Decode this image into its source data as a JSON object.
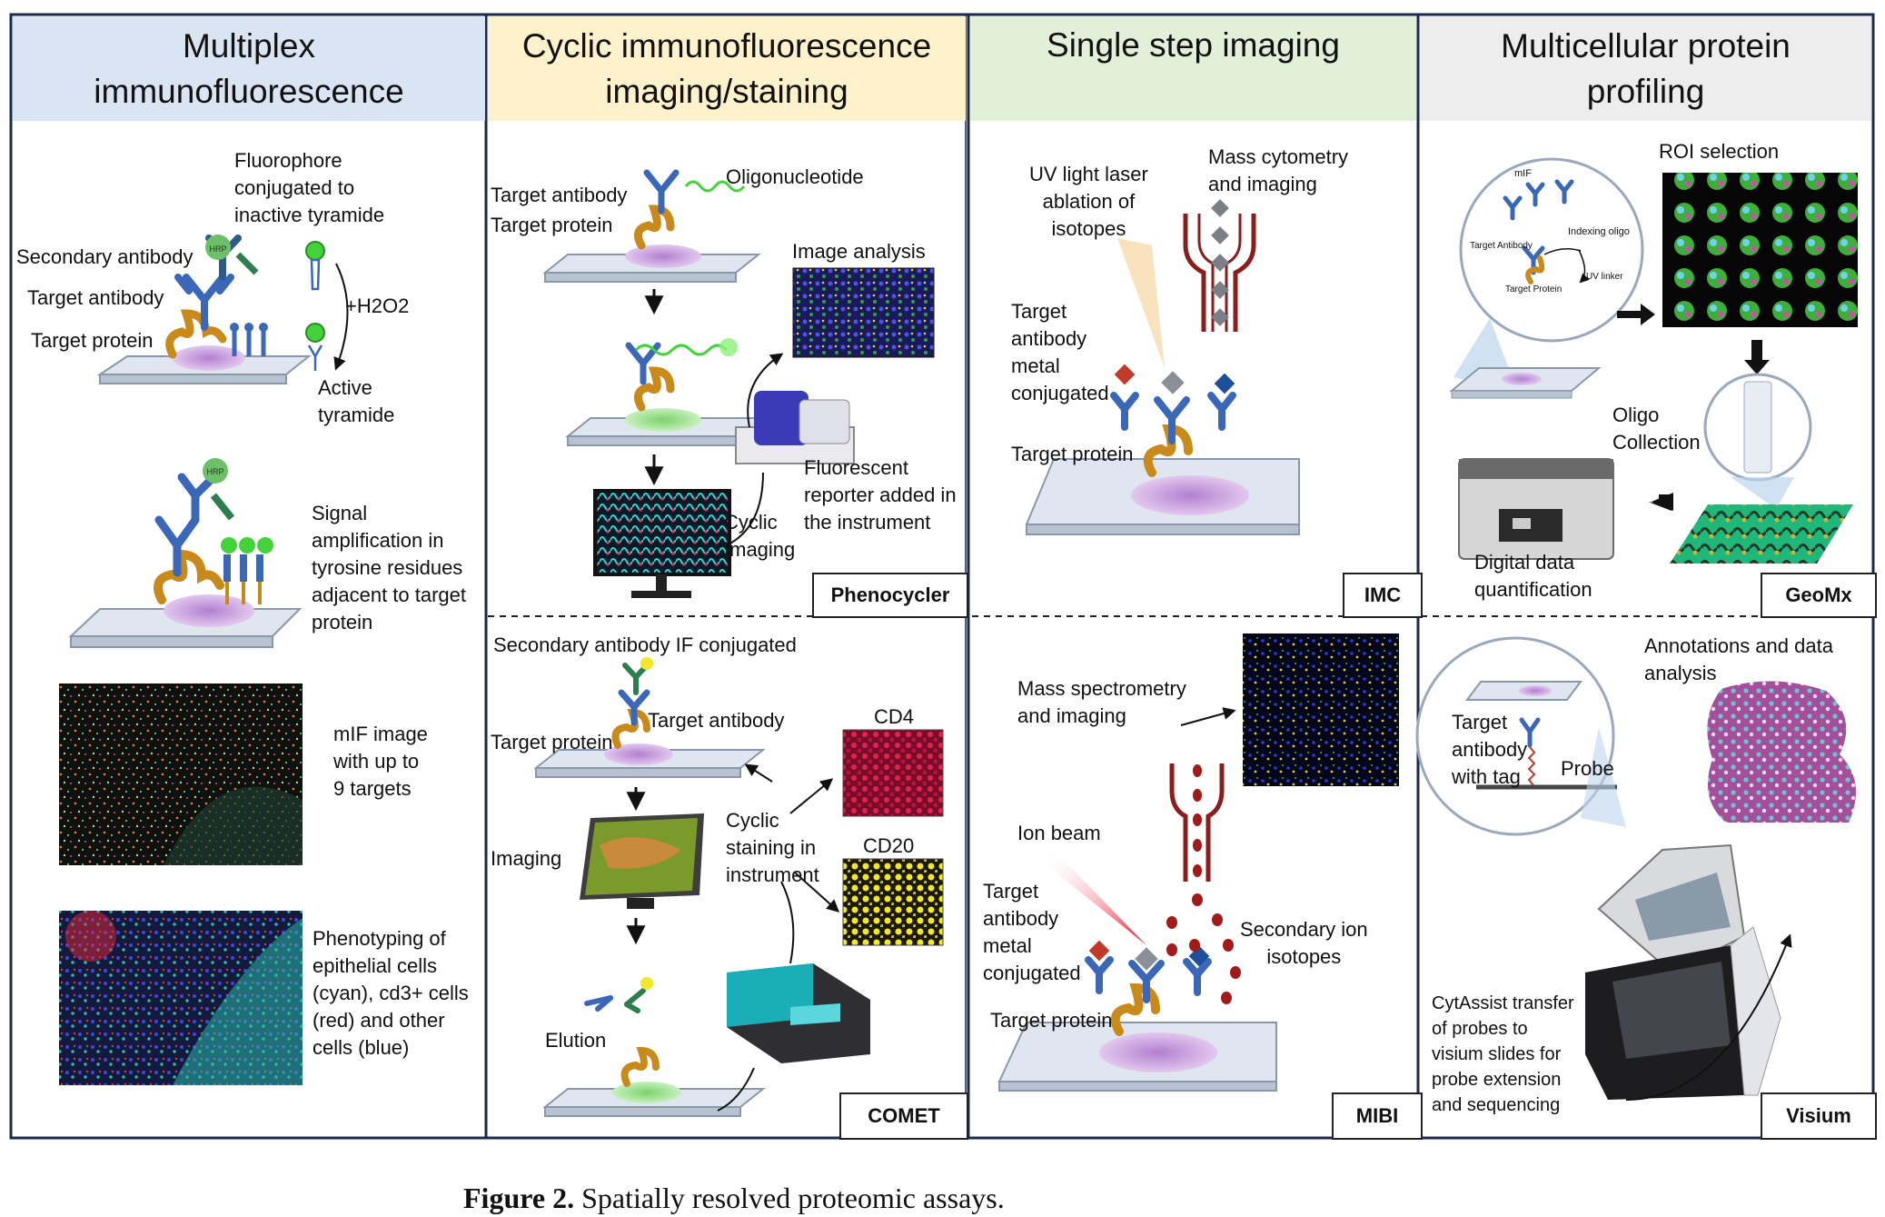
{
  "panels": [
    {
      "title": "Multiplex\nimmunofluorescence",
      "color": "#dae5f3"
    },
    {
      "title": "Cyclic immunofluorescence\nimaging/staining",
      "color": "#fdf2cc"
    },
    {
      "title": "Single step imaging",
      "color": "#e2efd9"
    },
    {
      "title": "Multicellular protein\nprofiling",
      "color": "#ededed"
    }
  ],
  "multiplex": {
    "fluorophore": "Fluorophore\nconjugated to\ninactive tyramide",
    "secondary_antibody": "Secondary antibody",
    "target_antibody": "Target antibody",
    "target_protein": "Target protein",
    "h2o2": "+H2O2",
    "active_tyramide": "Active\ntyramide",
    "hrp": "HRP",
    "signal": "Signal\namplification in\ntyrosine residues\nadjacent to target\nprotein",
    "mif_image": "mIF image\nwith up to\n9 targets",
    "phenotyping": "Phenotyping of\nepithelial cells\n(cyan), cd3+ cells\n(red) and other\ncells (blue)"
  },
  "phenocycler": {
    "target_antibody": "Target antibody",
    "target_protein": "Target protein",
    "oligonucleotide": "Oligonucleotide",
    "image_analysis": "Image analysis",
    "fluorescent_reporter": "Fluorescent\nreporter added in\nthe instrument",
    "cyclic_imaging": "Cyclic\nImaging",
    "tag": "Phenocycler"
  },
  "comet": {
    "secondary_if": "Secondary antibody IF conjugated",
    "target_antibody": "Target antibody",
    "target_protein": "Target protein",
    "cd4": "CD4",
    "cd20": "CD20",
    "cyclic_staining": "Cyclic\nstaining in\ninstrument",
    "imaging": "Imaging",
    "elution": "Elution",
    "tag": "COMET"
  },
  "imc": {
    "uv_laser": "UV light laser\nablation of\nisotopes",
    "mass_cytometry": "Mass cytometry\nand imaging",
    "target_antibody": "Target\nantibody\nmetal\nconjugated",
    "target_protein": "Target protein",
    "tag": "IMC"
  },
  "mibi": {
    "mass_spec": "Mass spectrometry\nand imaging",
    "ion_beam": "Ion beam",
    "target_antibody": "Target\nantibody\nmetal\nconjugated",
    "secondary_ion": "Secondary ion\nisotopes",
    "target_protein": "Target protein",
    "tag": "MIBI"
  },
  "geomx": {
    "roi": "ROI selection",
    "mif": "mIF",
    "indexing_oligo": "Indexing oligo",
    "target_antibody_small": "Target Antibody",
    "target_protein_small": "Target Protein",
    "uv_linker": "UV linker",
    "oligo_collection": "Oligo\nCollection",
    "digital_data": "Digital data\nquantification",
    "tag": "GeoMx"
  },
  "visium": {
    "annotations": "Annotations and data\nanalysis",
    "target_antibody": "Target\nantibody\nwith tag",
    "probe": "Probe",
    "cytassist": "CytAssist transfer\nof probes to\nvisium slides for\nprobe extension\nand sequencing",
    "tag": "Visium"
  },
  "caption": {
    "label": "Figure 2.",
    "text": " Spatially resolved proteomic assays."
  },
  "colors": {
    "antibody_blue": "#3a67b8",
    "antibody_green": "#2e7d4f",
    "protein_orange": "#c88a1a",
    "tissue_purple": "#c89ad6",
    "fluor_green": "#43d13c",
    "metal_red": "#c0392b",
    "ion_red": "#a11b1b"
  }
}
